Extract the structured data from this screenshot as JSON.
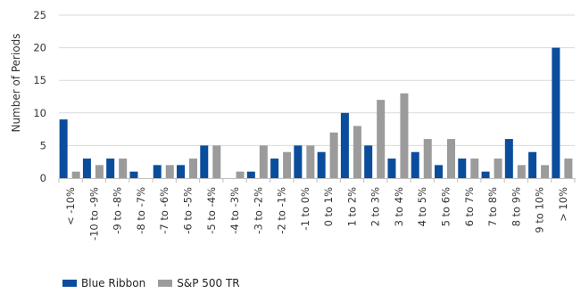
{
  "chart_data": {
    "type": "bar",
    "ylabel": "Number of Periods",
    "ylim": [
      0,
      25
    ],
    "yticks": [
      "0",
      "5",
      "10",
      "15",
      "20",
      "25"
    ],
    "grid": "horizontal",
    "legend_position": "bottom-left",
    "categories": [
      "< -10%",
      "-10 to -9%",
      "-9 to -8%",
      "-8 to -7%",
      "-7 to -6%",
      "-6 to -5%",
      "-5 to -4%",
      "-4 to -3%",
      "-3 to -2%",
      "-2 to -1%",
      "-1 to 0%",
      "0 to 1%",
      "1 to 2%",
      "2 to 3%",
      "3 to 4%",
      "4 to 5%",
      "5 to 6%",
      "6 to 7%",
      "7 to 8%",
      "8 to 9%",
      "9 to 10%",
      "> 10%"
    ],
    "series": [
      {
        "name": "Blue Ribbon",
        "color": "#0a4d9c",
        "values": [
          9,
          3,
          3,
          1,
          2,
          2,
          5,
          0,
          1,
          3,
          5,
          4,
          10,
          5,
          3,
          4,
          2,
          3,
          1,
          6,
          4,
          20
        ]
      },
      {
        "name": "S&P 500 TR",
        "color": "#9b9b9b",
        "values": [
          1,
          2,
          3,
          0,
          2,
          3,
          5,
          1,
          5,
          4,
          5,
          7,
          8,
          12,
          13,
          6,
          6,
          3,
          3,
          2,
          2,
          3
        ]
      }
    ]
  }
}
